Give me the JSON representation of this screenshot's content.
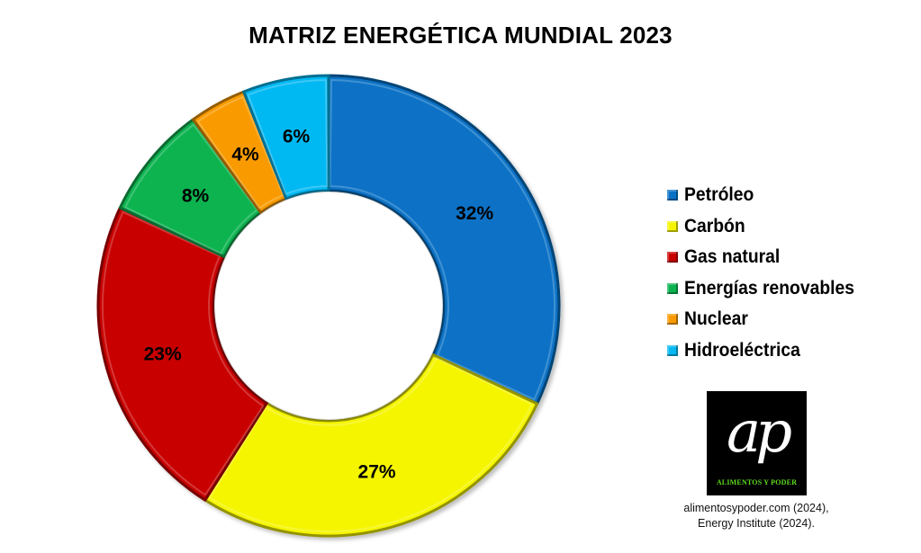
{
  "title": "MATRIZ ENERGÉTICA MUNDIAL 2023",
  "legend": {
    "items": [
      {
        "label": "Petróleo",
        "color": "#0A72C6"
      },
      {
        "label": "Carbón",
        "color": "#F5F500"
      },
      {
        "label": "Gas natural",
        "color": "#C80000"
      },
      {
        "label": "Energías renovables",
        "color": "#0BB350"
      },
      {
        "label": "Nuclear",
        "color": "#F99B00"
      },
      {
        "label": "Hidroeléctrica",
        "color": "#06B9F3"
      }
    ]
  },
  "logo": {
    "mark": "ap",
    "text": "ALIMENTOS Y PODER"
  },
  "source": {
    "line1": "alimentosypoder.com (2024),",
    "line2": "Energy Institute (2024)."
  },
  "chart_data": {
    "type": "pie",
    "subtype": "doughnut",
    "title": "MATRIZ ENERGÉTICA MUNDIAL 2023",
    "categories": [
      "Petróleo",
      "Carbón",
      "Gas natural",
      "Energías renovables",
      "Nuclear",
      "Hidroeléctrica"
    ],
    "values": [
      32,
      27,
      23,
      8,
      4,
      6
    ],
    "labels": [
      "32%",
      "27%",
      "23%",
      "8%",
      "4%",
      "6%"
    ],
    "colors": [
      "#0A72C6",
      "#F5F500",
      "#C80000",
      "#0BB350",
      "#F99B00",
      "#06B9F3"
    ],
    "unit": "%",
    "start_angle": "12 o'clock, clockwise",
    "legend_position": "right"
  }
}
